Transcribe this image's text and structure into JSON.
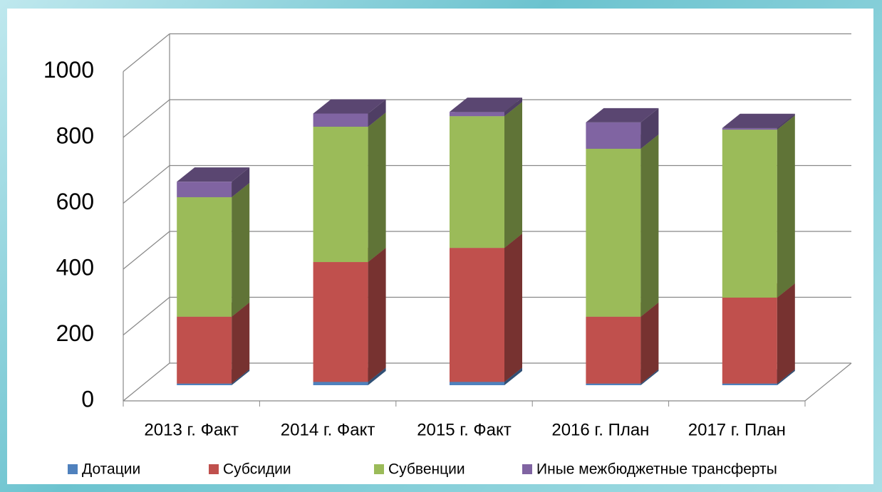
{
  "chart_data": {
    "type": "bar3d_stacked",
    "categories": [
      "2013 г. Факт",
      "2014 г. Факт",
      "2015 г. Факт",
      "2016 г. План",
      "2017 г. План"
    ],
    "series": [
      {
        "name": "Дотации",
        "color": "#4f81bd",
        "values": [
          5,
          10,
          10,
          5,
          5
        ]
      },
      {
        "name": "Субсидии",
        "color": "#c0504d",
        "values": [
          203,
          364,
          407,
          203,
          261
        ]
      },
      {
        "name": "Субвенции",
        "color": "#9bbb59",
        "values": [
          363,
          411,
          400,
          510,
          510
        ]
      },
      {
        "name": "Иные межбюджетные трансферты",
        "color": "#8064a2",
        "values": [
          47,
          40,
          13,
          80,
          5
        ]
      }
    ],
    "ylim": [
      0,
      1000
    ],
    "yticks": [
      0,
      200,
      400,
      600,
      800,
      1000
    ],
    "grid": true,
    "legend": "bottom"
  }
}
